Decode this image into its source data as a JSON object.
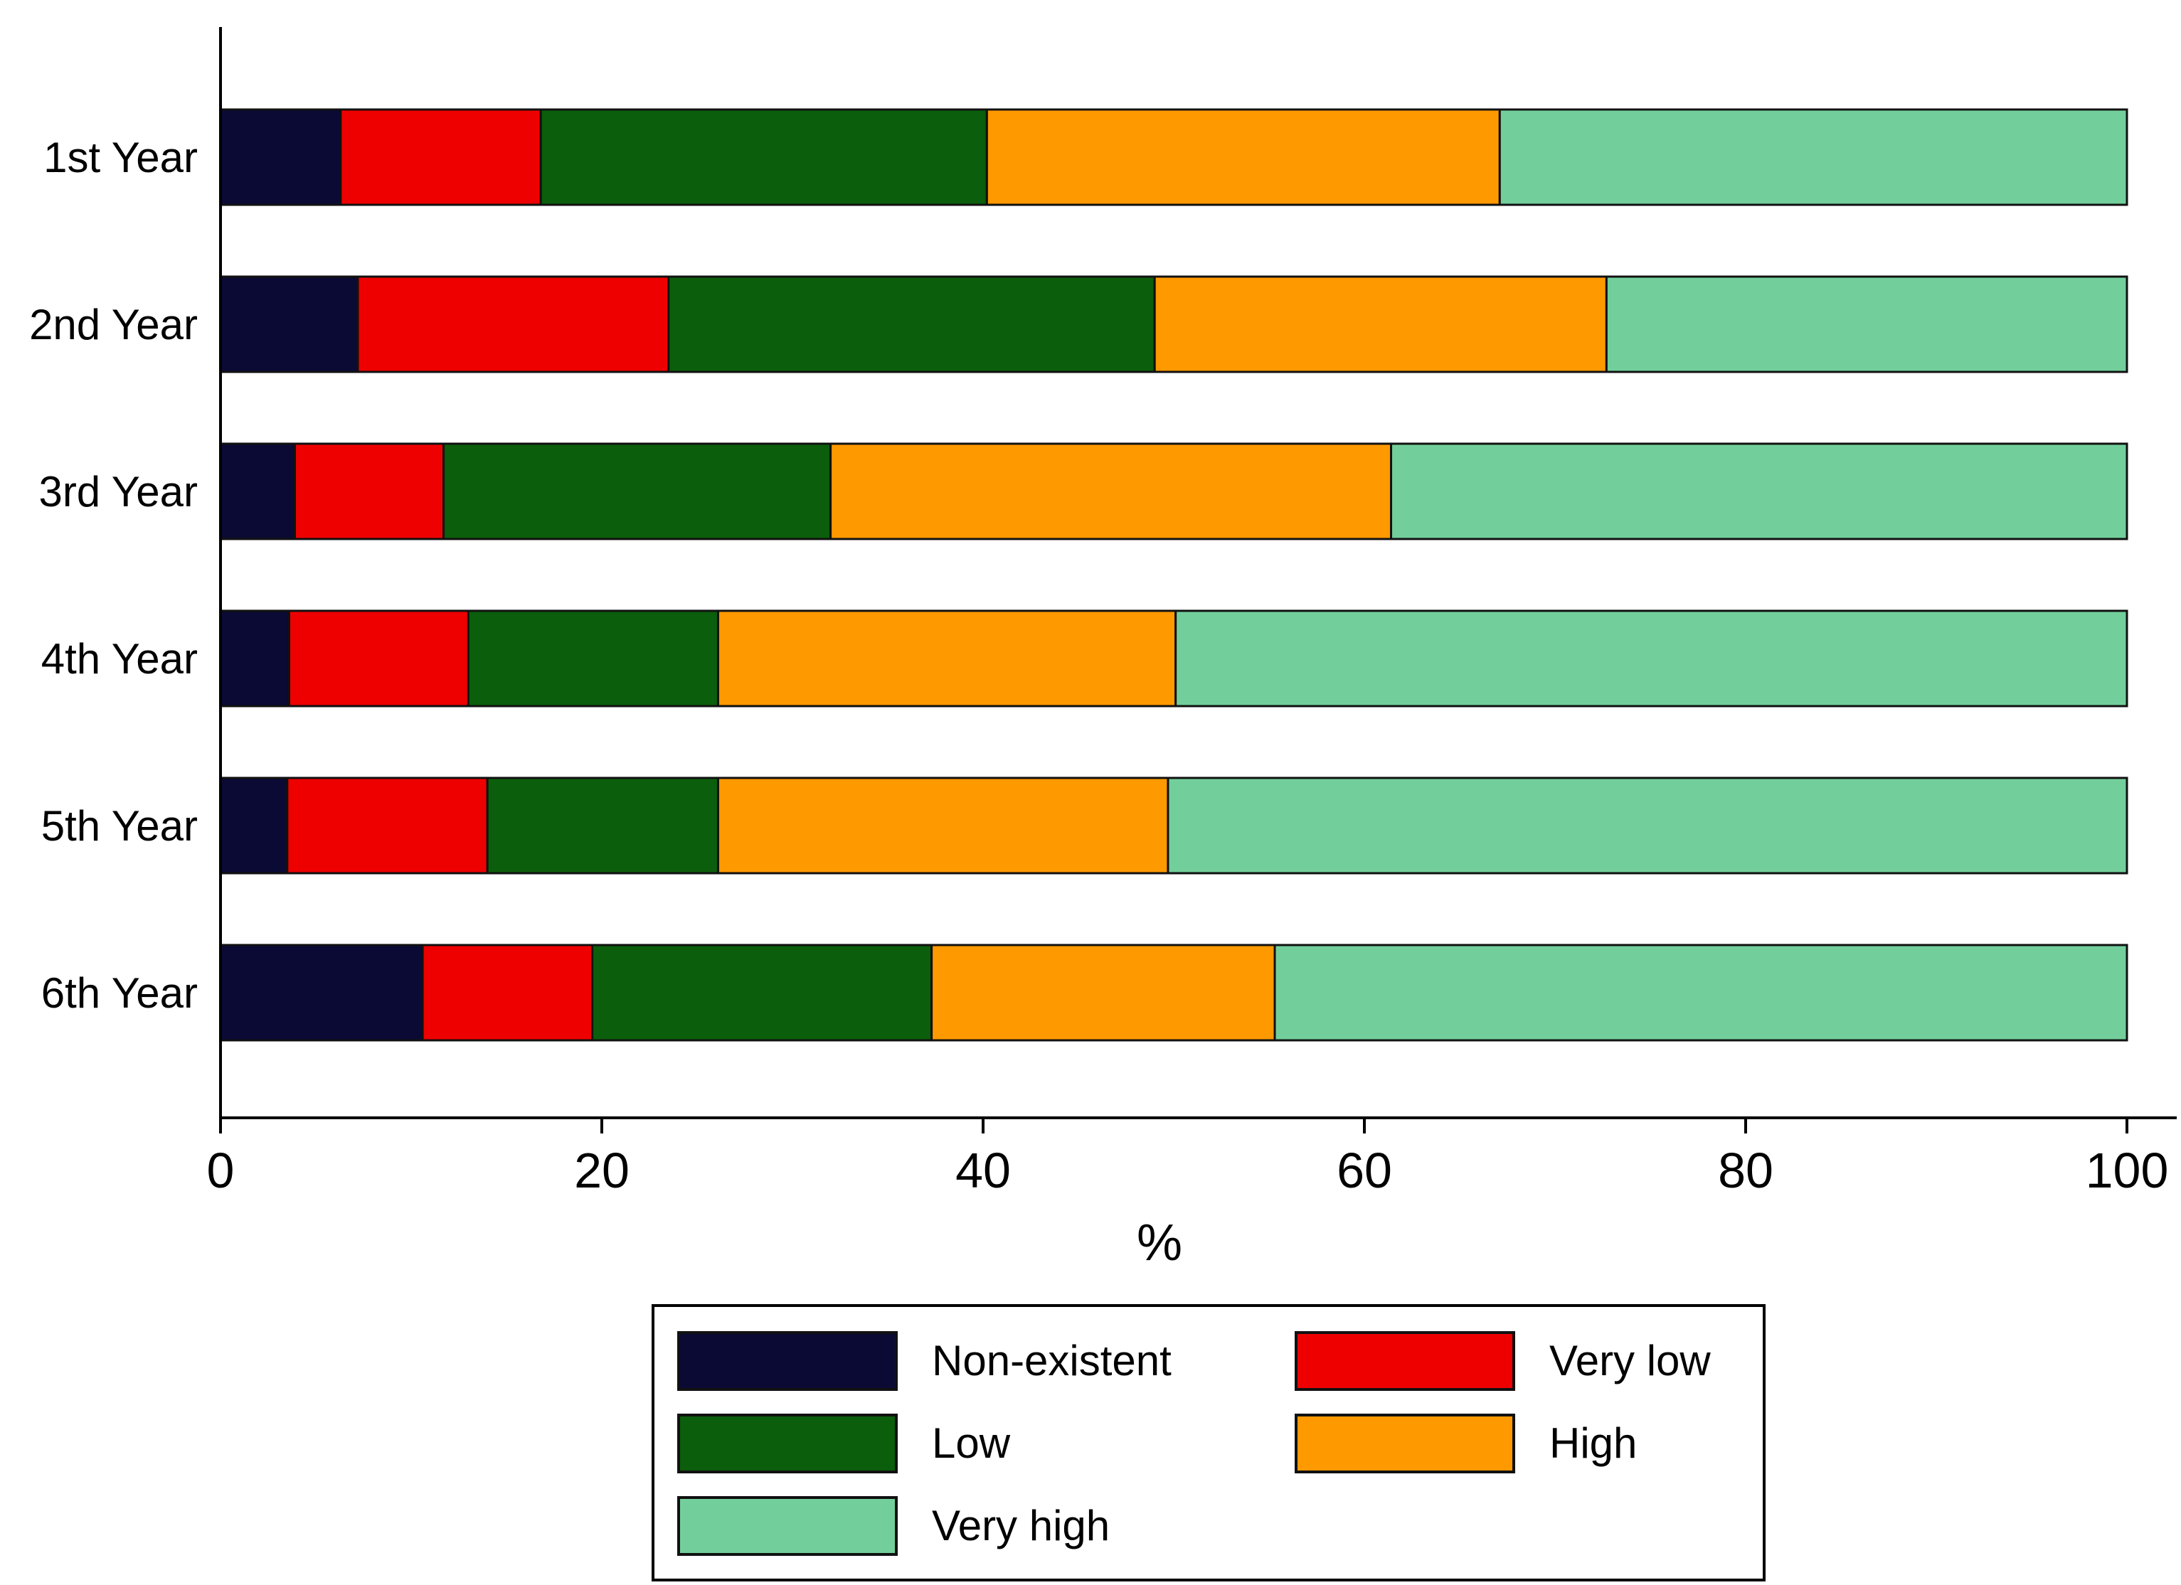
{
  "chart_data": {
    "type": "bar",
    "orientation": "horizontal",
    "stacked": true,
    "categories": [
      "1st Year",
      "2nd Year",
      "3rd Year",
      "4th Year",
      "5th Year",
      "6th Year"
    ],
    "series": [
      {
        "name": "Non-existent",
        "color": "#0a0a35",
        "values": [
          6.3,
          7.2,
          3.9,
          3.6,
          3.5,
          10.6
        ]
      },
      {
        "name": "Very low",
        "color": "#ee0000",
        "values": [
          10.5,
          16.3,
          7.8,
          9.4,
          10.5,
          8.9
        ]
      },
      {
        "name": "Low",
        "color": "#0b5e0b",
        "values": [
          23.4,
          25.5,
          20.3,
          13.1,
          12.1,
          17.8
        ]
      },
      {
        "name": "High",
        "color": "#ff9900",
        "values": [
          26.9,
          23.7,
          29.4,
          24.0,
          23.6,
          18.0
        ]
      },
      {
        "name": "Very high",
        "color": "#72cf9b",
        "values": [
          32.9,
          27.3,
          38.6,
          49.9,
          50.3,
          44.7
        ]
      }
    ],
    "xlabel": "%",
    "ylabel": "",
    "xlim": [
      0,
      100
    ],
    "xticks": [
      "0",
      "20",
      "40",
      "60",
      "80",
      "100"
    ],
    "grid": false,
    "legend_position": "bottom-center"
  }
}
